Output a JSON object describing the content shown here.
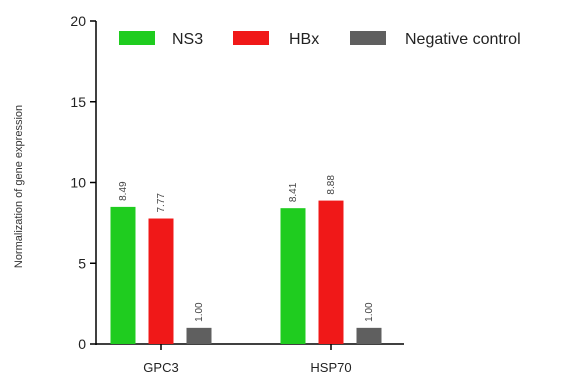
{
  "chart_data": {
    "type": "bar",
    "ylabel": "Normalization of gene expression",
    "xlabel": "",
    "ylim": [
      0,
      20
    ],
    "yticks": [
      0,
      5,
      10,
      15,
      20
    ],
    "categories": [
      "GPC3",
      "HSP70"
    ],
    "series": [
      {
        "name": "NS3",
        "values": [
          8.49,
          8.41
        ],
        "labels": [
          "8.49",
          "8.41"
        ],
        "color": "#1fcc1f"
      },
      {
        "name": "HBx",
        "values": [
          7.77,
          8.88
        ],
        "labels": [
          "7.77",
          "8.88"
        ],
        "color": "#f01818"
      },
      {
        "name": "Negative control",
        "values": [
          1.0,
          1.0
        ],
        "labels": [
          "1.00",
          "1.00"
        ],
        "color": "#5f5f5f"
      }
    ],
    "legend_position": "top-right",
    "grid": false
  }
}
